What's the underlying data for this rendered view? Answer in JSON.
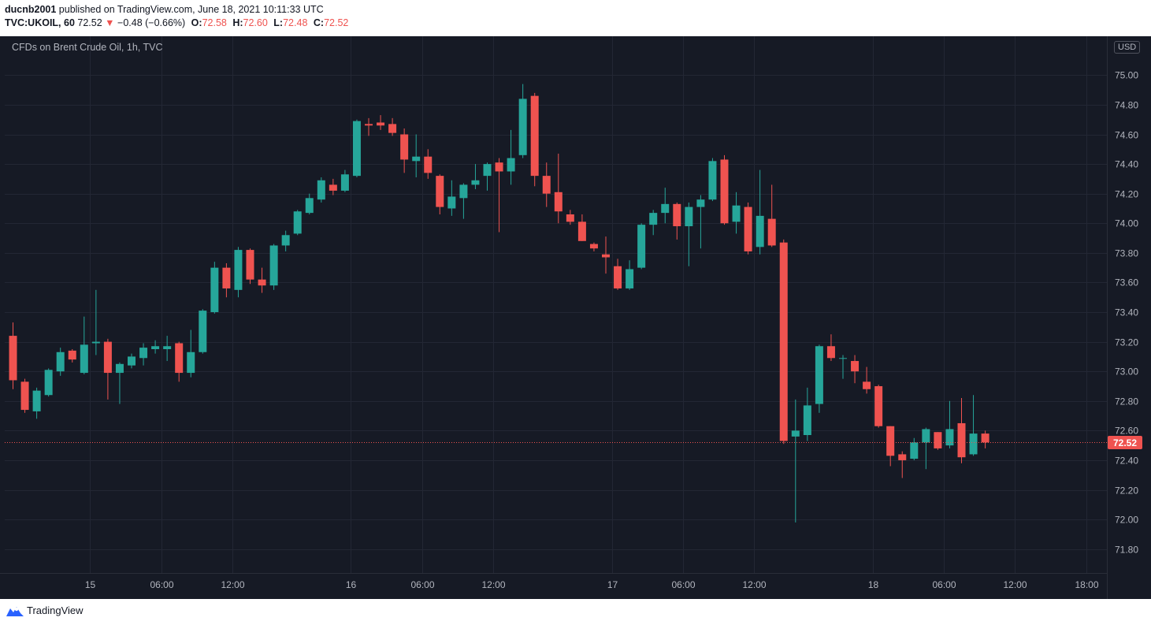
{
  "header": {
    "author": "ducnb2001",
    "published_text": " published on TradingView.com, June 18, 2021 10:11:33 UTC",
    "symbol": "TVC:UKOIL, 60",
    "last_price": "72.52",
    "change_arrow": "▼",
    "change_text": "−0.48 (−0.66%)",
    "open_label": "O:",
    "open": "72.58",
    "high_label": "H:",
    "high": "72.60",
    "low_label": "L:",
    "low": "72.48",
    "close_label": "C:",
    "close": "72.52"
  },
  "chart_title": "CFDs on Brent Crude Oil, 1h, TVC",
  "currency_badge": "USD",
  "footer": {
    "brand": "TradingView"
  },
  "colors": {
    "up": "#26a69a",
    "down": "#ef5350",
    "background": "#161a25",
    "grid": "#232734",
    "text": "#b2b5be"
  },
  "chart_data": {
    "type": "candlestick",
    "title": "CFDs on Brent Crude Oil, 1h, TVC",
    "currency": "USD",
    "last_price": 72.52,
    "last_price_label": "72.52",
    "ylim": [
      71.66,
      75.22
    ],
    "y_ticks": [
      71.8,
      72.0,
      72.2,
      72.4,
      72.6,
      72.8,
      73.0,
      73.2,
      73.4,
      73.6,
      73.8,
      74.0,
      74.2,
      74.4,
      74.6,
      74.8,
      75.0
    ],
    "x_ticks": [
      {
        "bar": 6.5,
        "label": "15"
      },
      {
        "bar": 12.5,
        "label": "06:00"
      },
      {
        "bar": 18.5,
        "label": "12:00"
      },
      {
        "bar": 28.5,
        "label": "16"
      },
      {
        "bar": 34.5,
        "label": "06:00"
      },
      {
        "bar": 40.5,
        "label": "12:00"
      },
      {
        "bar": 50.5,
        "label": "17"
      },
      {
        "bar": 56.5,
        "label": "06:00"
      },
      {
        "bar": 62.5,
        "label": "12:00"
      },
      {
        "bar": 72.5,
        "label": "18"
      },
      {
        "bar": 78.5,
        "label": "06:00"
      },
      {
        "bar": 84.5,
        "label": "12:00"
      },
      {
        "bar": 90.5,
        "label": "18:00"
      }
    ],
    "candles": [
      {
        "o": 73.24,
        "h": 73.33,
        "l": 72.88,
        "c": 72.94
      },
      {
        "o": 72.93,
        "h": 72.95,
        "l": 72.72,
        "c": 72.74
      },
      {
        "o": 72.73,
        "h": 72.89,
        "l": 72.68,
        "c": 72.87
      },
      {
        "o": 72.84,
        "h": 73.02,
        "l": 72.83,
        "c": 73.01
      },
      {
        "o": 73.0,
        "h": 73.16,
        "l": 72.97,
        "c": 73.13
      },
      {
        "o": 73.14,
        "h": 73.15,
        "l": 73.06,
        "c": 73.08
      },
      {
        "o": 72.99,
        "h": 73.37,
        "l": 72.98,
        "c": 73.18
      },
      {
        "o": 73.19,
        "h": 73.55,
        "l": 73.11,
        "c": 73.2
      },
      {
        "o": 73.2,
        "h": 73.22,
        "l": 72.81,
        "c": 72.99
      },
      {
        "o": 72.99,
        "h": 73.06,
        "l": 72.78,
        "c": 73.05
      },
      {
        "o": 73.04,
        "h": 73.12,
        "l": 73.02,
        "c": 73.1
      },
      {
        "o": 73.09,
        "h": 73.19,
        "l": 73.04,
        "c": 73.16
      },
      {
        "o": 73.15,
        "h": 73.21,
        "l": 73.12,
        "c": 73.17
      },
      {
        "o": 73.15,
        "h": 73.24,
        "l": 73.07,
        "c": 73.17
      },
      {
        "o": 73.19,
        "h": 73.2,
        "l": 72.93,
        "c": 72.99
      },
      {
        "o": 72.99,
        "h": 73.28,
        "l": 72.96,
        "c": 73.13
      },
      {
        "o": 73.13,
        "h": 73.42,
        "l": 73.12,
        "c": 73.41
      },
      {
        "o": 73.4,
        "h": 73.74,
        "l": 73.39,
        "c": 73.7
      },
      {
        "o": 73.7,
        "h": 73.73,
        "l": 73.5,
        "c": 73.56
      },
      {
        "o": 73.55,
        "h": 73.84,
        "l": 73.5,
        "c": 73.82
      },
      {
        "o": 73.82,
        "h": 73.83,
        "l": 73.59,
        "c": 73.62
      },
      {
        "o": 73.62,
        "h": 73.7,
        "l": 73.53,
        "c": 73.58
      },
      {
        "o": 73.58,
        "h": 73.86,
        "l": 73.55,
        "c": 73.85
      },
      {
        "o": 73.85,
        "h": 73.95,
        "l": 73.81,
        "c": 73.92
      },
      {
        "o": 73.93,
        "h": 74.09,
        "l": 73.92,
        "c": 74.08
      },
      {
        "o": 74.07,
        "h": 74.2,
        "l": 74.06,
        "c": 74.17
      },
      {
        "o": 74.16,
        "h": 74.31,
        "l": 74.14,
        "c": 74.29
      },
      {
        "o": 74.26,
        "h": 74.3,
        "l": 74.19,
        "c": 74.22
      },
      {
        "o": 74.22,
        "h": 74.36,
        "l": 74.21,
        "c": 74.33
      },
      {
        "o": 74.32,
        "h": 74.7,
        "l": 74.31,
        "c": 74.69
      },
      {
        "o": 74.67,
        "h": 74.71,
        "l": 74.59,
        "c": 74.66
      },
      {
        "o": 74.68,
        "h": 74.73,
        "l": 74.63,
        "c": 74.66
      },
      {
        "o": 74.67,
        "h": 74.71,
        "l": 74.59,
        "c": 74.61
      },
      {
        "o": 74.6,
        "h": 74.64,
        "l": 74.34,
        "c": 74.43
      },
      {
        "o": 74.42,
        "h": 74.6,
        "l": 74.31,
        "c": 74.45
      },
      {
        "o": 74.45,
        "h": 74.5,
        "l": 74.3,
        "c": 74.34
      },
      {
        "o": 74.32,
        "h": 74.33,
        "l": 74.06,
        "c": 74.11
      },
      {
        "o": 74.1,
        "h": 74.29,
        "l": 74.05,
        "c": 74.18
      },
      {
        "o": 74.17,
        "h": 74.27,
        "l": 74.03,
        "c": 74.26
      },
      {
        "o": 74.26,
        "h": 74.4,
        "l": 74.23,
        "c": 74.29
      },
      {
        "o": 74.32,
        "h": 74.41,
        "l": 74.22,
        "c": 74.4
      },
      {
        "o": 74.41,
        "h": 74.44,
        "l": 73.94,
        "c": 74.35
      },
      {
        "o": 74.35,
        "h": 74.63,
        "l": 74.26,
        "c": 74.44
      },
      {
        "o": 74.46,
        "h": 74.94,
        "l": 74.44,
        "c": 74.84
      },
      {
        "o": 74.86,
        "h": 74.88,
        "l": 74.25,
        "c": 74.32
      },
      {
        "o": 74.32,
        "h": 74.41,
        "l": 74.11,
        "c": 74.2
      },
      {
        "o": 74.21,
        "h": 74.47,
        "l": 74.0,
        "c": 74.08
      },
      {
        "o": 74.06,
        "h": 74.09,
        "l": 73.99,
        "c": 74.01
      },
      {
        "o": 74.01,
        "h": 74.06,
        "l": 73.88,
        "c": 73.88
      },
      {
        "o": 73.86,
        "h": 73.87,
        "l": 73.81,
        "c": 73.83
      },
      {
        "o": 73.79,
        "h": 73.91,
        "l": 73.66,
        "c": 73.77
      },
      {
        "o": 73.71,
        "h": 73.76,
        "l": 73.55,
        "c": 73.56
      },
      {
        "o": 73.56,
        "h": 73.75,
        "l": 73.55,
        "c": 73.69
      },
      {
        "o": 73.7,
        "h": 74.0,
        "l": 73.69,
        "c": 73.99
      },
      {
        "o": 73.99,
        "h": 74.09,
        "l": 73.92,
        "c": 74.07
      },
      {
        "o": 74.07,
        "h": 74.24,
        "l": 74.0,
        "c": 74.13
      },
      {
        "o": 74.13,
        "h": 74.14,
        "l": 73.89,
        "c": 73.98
      },
      {
        "o": 73.98,
        "h": 74.14,
        "l": 73.71,
        "c": 74.11
      },
      {
        "o": 74.11,
        "h": 74.19,
        "l": 73.83,
        "c": 74.16
      },
      {
        "o": 74.16,
        "h": 74.44,
        "l": 74.15,
        "c": 74.42
      },
      {
        "o": 74.43,
        "h": 74.46,
        "l": 73.99,
        "c": 74.0
      },
      {
        "o": 74.01,
        "h": 74.21,
        "l": 73.93,
        "c": 74.12
      },
      {
        "o": 74.11,
        "h": 74.14,
        "l": 73.79,
        "c": 73.81
      },
      {
        "o": 73.84,
        "h": 74.36,
        "l": 73.79,
        "c": 74.05
      },
      {
        "o": 74.03,
        "h": 74.26,
        "l": 73.84,
        "c": 73.85
      },
      {
        "o": 73.87,
        "h": 73.89,
        "l": 72.51,
        "c": 72.53
      },
      {
        "o": 72.56,
        "h": 72.81,
        "l": 71.98,
        "c": 72.6
      },
      {
        "o": 72.57,
        "h": 72.89,
        "l": 72.53,
        "c": 72.77
      },
      {
        "o": 72.78,
        "h": 73.18,
        "l": 72.72,
        "c": 73.17
      },
      {
        "o": 73.17,
        "h": 73.25,
        "l": 73.07,
        "c": 73.09
      },
      {
        "o": 73.09,
        "h": 73.11,
        "l": 72.95,
        "c": 73.09
      },
      {
        "o": 73.07,
        "h": 73.11,
        "l": 72.92,
        "c": 73.0
      },
      {
        "o": 72.93,
        "h": 73.03,
        "l": 72.85,
        "c": 72.88
      },
      {
        "o": 72.9,
        "h": 72.91,
        "l": 72.62,
        "c": 72.63
      },
      {
        "o": 72.63,
        "h": 72.63,
        "l": 72.36,
        "c": 72.43
      },
      {
        "o": 72.44,
        "h": 72.46,
        "l": 72.28,
        "c": 72.4
      },
      {
        "o": 72.41,
        "h": 72.55,
        "l": 72.4,
        "c": 72.52
      },
      {
        "o": 72.52,
        "h": 72.62,
        "l": 72.34,
        "c": 72.61
      },
      {
        "o": 72.59,
        "h": 72.59,
        "l": 72.47,
        "c": 72.48
      },
      {
        "o": 72.5,
        "h": 72.8,
        "l": 72.48,
        "c": 72.61
      },
      {
        "o": 72.65,
        "h": 72.82,
        "l": 72.38,
        "c": 72.42
      },
      {
        "o": 72.44,
        "h": 72.84,
        "l": 72.43,
        "c": 72.58
      },
      {
        "o": 72.58,
        "h": 72.6,
        "l": 72.48,
        "c": 72.52
      }
    ]
  }
}
